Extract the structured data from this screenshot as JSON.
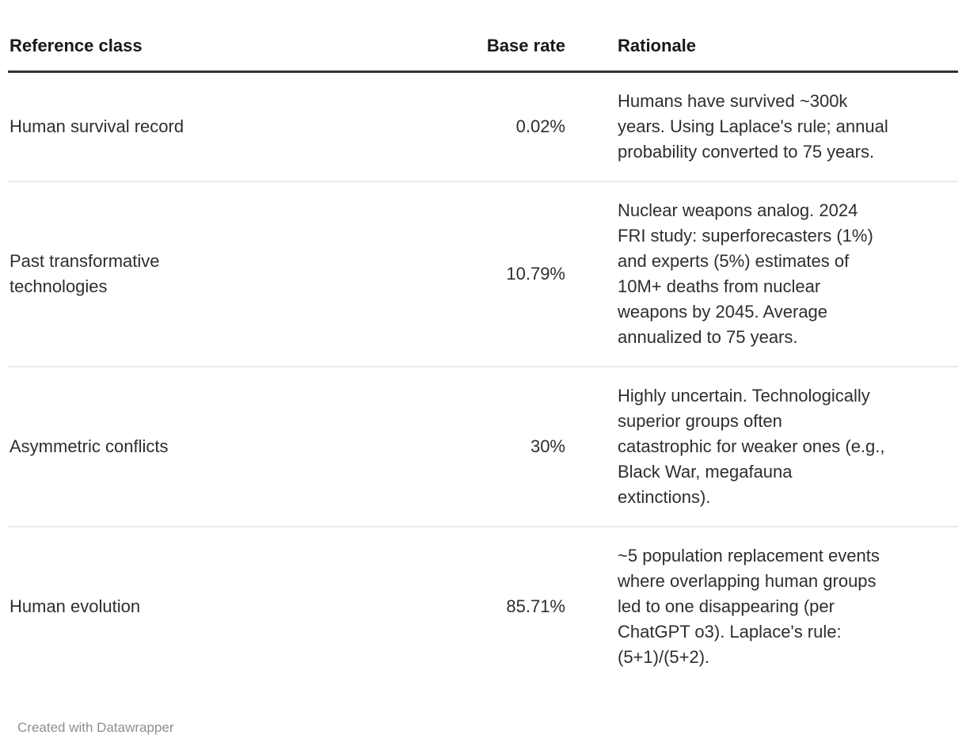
{
  "chart_data": {
    "type": "table",
    "columns": [
      {
        "key": "reference_class",
        "label": "Reference class"
      },
      {
        "key": "base_rate",
        "label": "Base rate"
      },
      {
        "key": "rationale",
        "label": "Rationale"
      }
    ],
    "rows": [
      {
        "reference_class": "Human survival record",
        "base_rate": "0.02%",
        "rationale": "Humans have survived ~300k\nyears. Using Laplace's rule; annual\nprobability converted to 75 years."
      },
      {
        "reference_class": "Past transformative technologies",
        "base_rate": "10.79%",
        "rationale": "Nuclear weapons analog. 2024\nFRI study: superforecasters (1%)\nand experts (5%) estimates of\n10M+ deaths from nuclear\nweapons by 2045. Average\nannualized to 75 years."
      },
      {
        "reference_class": "Asymmetric conflicts",
        "base_rate": "30%",
        "rationale": "Highly uncertain. Technologically\nsuperior groups often\ncatastrophic for weaker ones (e.g.,\nBlack War, megafauna\nextinctions)."
      },
      {
        "reference_class": "Human evolution",
        "base_rate": "85.71%",
        "rationale": "~5 population replacement events\nwhere overlapping human groups\nled to one disappearing (per\nChatGPT o3). Laplace's rule:\n(5+1)/(5+2)."
      }
    ],
    "legend_position": "none",
    "grid": "horizontal-dividers"
  },
  "footer": {
    "credit": "Created with Datawrapper"
  },
  "colors": {
    "background": "#ffffff",
    "header_text": "#191919",
    "body_text": "#2e2e2e",
    "header_rule": "#333333",
    "row_divider": "#ebebeb",
    "footer_text": "#8f8f8f"
  }
}
